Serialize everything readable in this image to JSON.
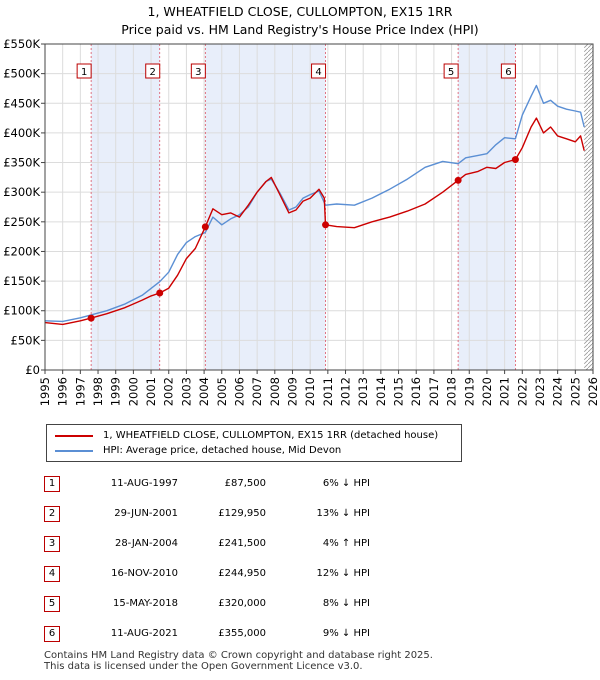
{
  "chart_data": {
    "type": "line",
    "title": "1, WHEATFIELD CLOSE, CULLOMPTON, EX15 1RR",
    "subtitle": "Price paid vs. HM Land Registry's House Price Index (HPI)",
    "xlabel": "",
    "ylabel": "",
    "xlim": [
      1995,
      2026
    ],
    "ylim": [
      0,
      550000
    ],
    "x_ticks": [
      "1995",
      "1996",
      "1997",
      "1998",
      "1999",
      "2000",
      "2001",
      "2002",
      "2003",
      "2004",
      "2005",
      "2006",
      "2007",
      "2008",
      "2009",
      "2010",
      "2011",
      "2012",
      "2013",
      "2014",
      "2015",
      "2016",
      "2017",
      "2018",
      "2019",
      "2020",
      "2021",
      "2022",
      "2023",
      "2024",
      "2025",
      "2026"
    ],
    "y_ticks": [
      "£0",
      "£50K",
      "£100K",
      "£150K",
      "£200K",
      "£250K",
      "£300K",
      "£350K",
      "£400K",
      "£450K",
      "£500K",
      "£550K"
    ],
    "shaded_periods": [
      [
        1997.61,
        2001.49
      ],
      [
        2004.07,
        2010.87
      ],
      [
        2018.37,
        2021.61
      ]
    ],
    "hatched_after": 2025.5,
    "series": [
      {
        "name": "1, WHEATFIELD CLOSE, CULLOMPTON, EX15 1RR (detached house)",
        "color": "#cc0000",
        "x": [
          1995.0,
          1996.0,
          1997.0,
          1997.61,
          1998.5,
          1999.5,
          2000.5,
          2001.0,
          2001.49,
          2002.0,
          2002.5,
          2003.0,
          2003.5,
          2004.07,
          2004.5,
          2005.0,
          2005.5,
          2006.0,
          2006.5,
          2007.0,
          2007.5,
          2007.8,
          2008.3,
          2008.8,
          2009.2,
          2009.6,
          2010.0,
          2010.5,
          2010.8,
          2010.87,
          2011.5,
          2012.5,
          2013.5,
          2014.5,
          2015.5,
          2016.5,
          2017.5,
          2018.37,
          2018.8,
          2019.5,
          2020.0,
          2020.5,
          2021.0,
          2021.61,
          2022.0,
          2022.5,
          2022.8,
          2023.2,
          2023.6,
          2024.0,
          2024.5,
          2025.0,
          2025.3,
          2025.5
        ],
        "y": [
          80000,
          77000,
          83000,
          87500,
          95000,
          105000,
          118000,
          125000,
          129950,
          138000,
          160000,
          188000,
          205000,
          241500,
          272000,
          262000,
          265000,
          258000,
          278000,
          300000,
          318000,
          325000,
          295000,
          265000,
          270000,
          285000,
          290000,
          305000,
          290000,
          244950,
          242000,
          240000,
          250000,
          258000,
          268000,
          280000,
          300000,
          320000,
          330000,
          335000,
          342000,
          340000,
          350000,
          355000,
          375000,
          410000,
          425000,
          400000,
          410000,
          395000,
          390000,
          385000,
          395000,
          370000
        ]
      },
      {
        "name": "HPI: Average price, detached house, Mid Devon",
        "color": "#5b8fd4",
        "x": [
          1995.0,
          1996.0,
          1997.0,
          1997.61,
          1998.5,
          1999.5,
          2000.5,
          2001.49,
          2002.0,
          2002.5,
          2003.0,
          2003.5,
          2004.07,
          2004.5,
          2005.0,
          2005.5,
          2006.0,
          2006.5,
          2007.0,
          2007.5,
          2007.8,
          2008.3,
          2008.8,
          2009.2,
          2009.6,
          2010.0,
          2010.5,
          2010.87,
          2011.5,
          2012.5,
          2013.5,
          2014.5,
          2015.5,
          2016.5,
          2017.5,
          2018.37,
          2018.8,
          2019.5,
          2020.0,
          2020.5,
          2021.0,
          2021.61,
          2022.0,
          2022.5,
          2022.8,
          2023.2,
          2023.6,
          2024.0,
          2024.5,
          2025.0,
          2025.3,
          2025.5
        ],
        "y": [
          83000,
          82000,
          88000,
          93000,
          100000,
          111000,
          126000,
          149000,
          165000,
          195000,
          215000,
          225000,
          232000,
          258000,
          245000,
          255000,
          262000,
          275000,
          300000,
          318000,
          322000,
          298000,
          270000,
          275000,
          290000,
          296000,
          302000,
          278000,
          280000,
          278000,
          290000,
          305000,
          322000,
          342000,
          352000,
          348000,
          358000,
          362000,
          365000,
          380000,
          392000,
          390000,
          430000,
          462000,
          480000,
          450000,
          455000,
          445000,
          440000,
          437000,
          435000,
          410000
        ]
      }
    ],
    "sale_points": [
      {
        "label": "1",
        "x": 1997.61,
        "y": 87500
      },
      {
        "label": "2",
        "x": 2001.49,
        "y": 129950
      },
      {
        "label": "3",
        "x": 2004.07,
        "y": 241500
      },
      {
        "label": "4",
        "x": 2010.87,
        "y": 244950
      },
      {
        "label": "5",
        "x": 2018.37,
        "y": 320000
      },
      {
        "label": "6",
        "x": 2021.61,
        "y": 355000
      }
    ]
  },
  "legend": {
    "property_label": "1, WHEATFIELD CLOSE, CULLOMPTON, EX15 1RR (detached house)",
    "hpi_label": "HPI: Average price, detached house, Mid Devon",
    "property_color": "#cc0000",
    "hpi_color": "#5b8fd4"
  },
  "sales": [
    {
      "num": "1",
      "date": "11-AUG-1997",
      "price": "£87,500",
      "hpi": "6% ↓ HPI"
    },
    {
      "num": "2",
      "date": "29-JUN-2001",
      "price": "£129,950",
      "hpi": "13% ↓ HPI"
    },
    {
      "num": "3",
      "date": "28-JAN-2004",
      "price": "£241,500",
      "hpi": "4% ↑ HPI"
    },
    {
      "num": "4",
      "date": "16-NOV-2010",
      "price": "£244,950",
      "hpi": "12% ↓ HPI"
    },
    {
      "num": "5",
      "date": "15-MAY-2018",
      "price": "£320,000",
      "hpi": "8% ↓ HPI"
    },
    {
      "num": "6",
      "date": "11-AUG-2021",
      "price": "£355,000",
      "hpi": "9% ↓ HPI"
    }
  ],
  "footer": {
    "line1": "Contains HM Land Registry data © Crown copyright and database right 2025.",
    "line2": "This data is licensed under the Open Government Licence v3.0."
  }
}
